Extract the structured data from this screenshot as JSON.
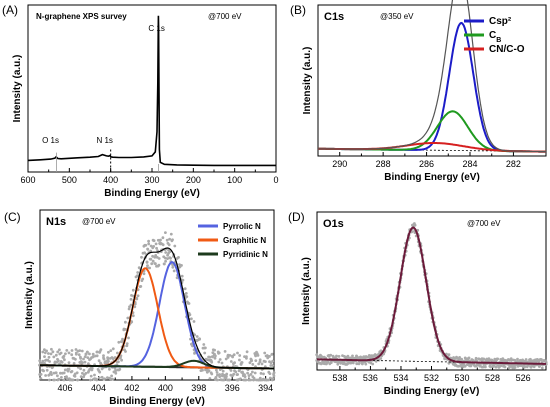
{
  "chart_data": [
    {
      "panel": "(A)",
      "type": "line",
      "title": "N-graphene XPS survey",
      "title_color": "#b22222",
      "annotation": "@700 eV",
      "xlabel": "Binding Energy (eV)",
      "ylabel": "Intensity (a.u.)",
      "xlim": [
        600,
        0
      ],
      "x_ticks": [
        600,
        500,
        400,
        300,
        200,
        100,
        0
      ],
      "peak_labels": [
        {
          "text": "O 1s",
          "x": 531
        },
        {
          "text": "N 1s",
          "x": 400
        },
        {
          "text": "C 1s",
          "x": 284
        }
      ],
      "series": [
        {
          "color": "#000000",
          "x": [
            600,
            570,
            545,
            535,
            532,
            528,
            520,
            480,
            450,
            430,
            420,
            410,
            405,
            402,
            399,
            395,
            380,
            350,
            320,
            300,
            292,
            288,
            286,
            285,
            284.5,
            284,
            283,
            282,
            280,
            270,
            240,
            200,
            150,
            100,
            50,
            0
          ],
          "y": [
            7.2,
            7.6,
            8.0,
            8.6,
            9.4,
            8.4,
            8.2,
            8.8,
            9.2,
            9.6,
            10.8,
            10.0,
            9.8,
            10.2,
            9.4,
            9.2,
            9.0,
            9.0,
            9.4,
            10.0,
            12.5,
            25,
            55,
            85,
            97,
            90,
            50,
            14,
            6,
            4.8,
            4.4,
            4.2,
            4.1,
            4.1,
            4.1,
            4.1
          ]
        }
      ]
    },
    {
      "panel": "(B)",
      "type": "line",
      "title": "C1s",
      "annotation": "@350 eV",
      "xlabel": "Binding Energy (eV)",
      "ylabel": "Intensity (a.u.)",
      "xlim": [
        291,
        280.5
      ],
      "x_ticks": [
        290,
        288,
        286,
        284,
        282
      ],
      "legend": "top-right",
      "series": [
        {
          "name": "Csp²",
          "color": "#1c1cc8",
          "peak": 284.4,
          "height": 88,
          "width": 0.55
        },
        {
          "name": "CB",
          "color": "#1f9a1f",
          "peak": 284.8,
          "height": 27,
          "width": 0.7
        },
        {
          "name": "CN/C-O",
          "color": "#d62020",
          "peak": 285.6,
          "height": 5,
          "width": 1.3
        },
        {
          "color": "#555555",
          "role": "envelope"
        },
        {
          "color": "#000000",
          "role": "background"
        }
      ]
    },
    {
      "panel": "(C)",
      "type": "scatter",
      "title": "N1s",
      "annotation": "@700 eV",
      "xlabel": "Binding Energy (eV)",
      "ylabel": "Intensity (a.u.)",
      "xlim": [
        407.5,
        393.5
      ],
      "x_ticks": [
        406,
        404,
        402,
        400,
        398,
        396,
        394
      ],
      "legend": "top-right",
      "series": [
        {
          "name": "Pyrrolic N",
          "color": "#5563e0",
          "peak": 399.6,
          "height": 64,
          "width": 0.75
        },
        {
          "name": "Graphitic N",
          "color": "#f05a14",
          "peak": 401.2,
          "height": 60,
          "width": 0.75
        },
        {
          "name": "Pyrridinic N",
          "color": "#1d3a1d",
          "peak": 398.3,
          "height": 4,
          "width": 0.6
        },
        {
          "color": "#000000",
          "role": "envelope"
        },
        {
          "color": "#aaaaaa",
          "role": "data points"
        }
      ]
    },
    {
      "panel": "(D)",
      "type": "scatter",
      "title": "O1s",
      "annotation": "@700 eV",
      "xlabel": "Binding Energy (eV)",
      "ylabel": "Intensity (a.u.)",
      "xlim": [
        539.5,
        524.5
      ],
      "x_ticks": [
        538,
        536,
        534,
        532,
        530,
        528,
        526
      ],
      "series": [
        {
          "color": "#6b1a3a",
          "peak": 533.2,
          "height": 88,
          "width": 0.85,
          "role": "fit"
        },
        {
          "color": "#000000",
          "role": "background"
        },
        {
          "color": "#aaaaaa",
          "role": "data points"
        }
      ]
    }
  ]
}
